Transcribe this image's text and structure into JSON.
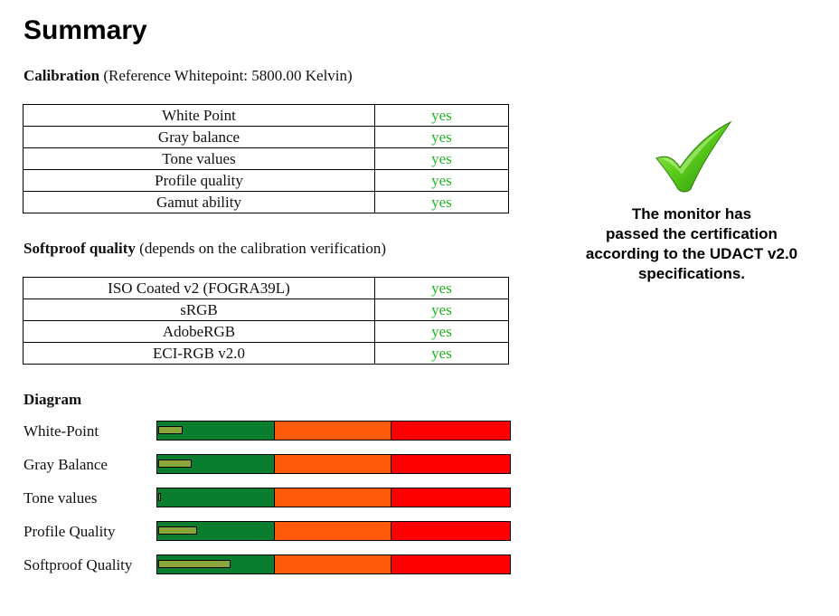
{
  "page": {
    "title": "Summary"
  },
  "calibration": {
    "heading_bold": "Calibration",
    "heading_note": "(Reference Whitepoint: 5800.00 Kelvin)",
    "rows": [
      {
        "label": "White Point",
        "value": "yes"
      },
      {
        "label": "Gray balance",
        "value": "yes"
      },
      {
        "label": "Tone values",
        "value": "yes"
      },
      {
        "label": "Profile quality",
        "value": "yes"
      },
      {
        "label": "Gamut ability",
        "value": "yes"
      }
    ]
  },
  "softproof": {
    "heading_bold": "Softproof quality",
    "heading_note": "(depends on the calibration verification)",
    "rows": [
      {
        "label": "ISO Coated v2 (FOGRA39L)",
        "value": "yes"
      },
      {
        "label": "sRGB",
        "value": "yes"
      },
      {
        "label": "AdobeRGB",
        "value": "yes"
      },
      {
        "label": "ECI-RGB v2.0",
        "value": "yes"
      }
    ]
  },
  "diagram": {
    "heading": "Diagram",
    "zones": [
      "green",
      "orange",
      "red"
    ],
    "zone_colors": {
      "green": "#0a7d2e",
      "orange": "#ff5a0a",
      "red": "#ff0000",
      "indicator": "#8aa53a"
    },
    "bars": [
      {
        "label": "White-Point",
        "level": 0.065
      },
      {
        "label": "Gray Balance",
        "level": 0.09
      },
      {
        "label": "Tone values",
        "level": 0.003
      },
      {
        "label": "Profile Quality",
        "level": 0.105
      },
      {
        "label": "Softproof Quality",
        "level": 0.2
      }
    ]
  },
  "certification": {
    "icon": "green-checkmark-icon",
    "lines": [
      "The monitor has",
      "passed the certification",
      "according to the UDACT v2.0",
      "specifications."
    ],
    "text_color": "#000000"
  }
}
